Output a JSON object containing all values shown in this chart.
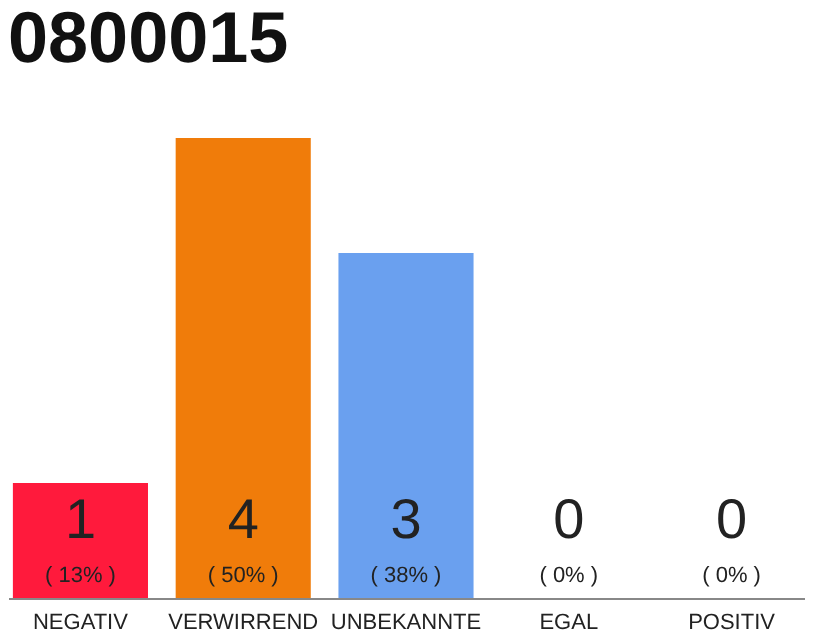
{
  "chart_data": {
    "type": "bar",
    "title": "0800015",
    "categories": [
      "NEGATIV",
      "VERWIRREND",
      "UNBEKANNTE",
      "EGAL",
      "POSITIV"
    ],
    "values": [
      1,
      4,
      3,
      0,
      0
    ],
    "colors": [
      "#ff1a3c",
      "#f07c0a",
      "#6aa0ef",
      "#999999",
      "#999999"
    ],
    "ylim": [
      0,
      4
    ],
    "tick_labels": "x",
    "legend": false,
    "data_labels": true,
    "annotations": [
      {
        "text": "( 13% )",
        "x": "NEGATIV",
        "y": 0
      },
      {
        "text": "( 50% )",
        "x": "VERWIRREND",
        "y": 0
      },
      {
        "text": "( 38% )",
        "x": "UNBEKANNTE",
        "y": 0
      },
      {
        "text": "( 0% )",
        "x": "EGAL",
        "y": 0
      },
      {
        "text": "( 0% )",
        "x": "POSITIV",
        "y": 0
      }
    ]
  }
}
